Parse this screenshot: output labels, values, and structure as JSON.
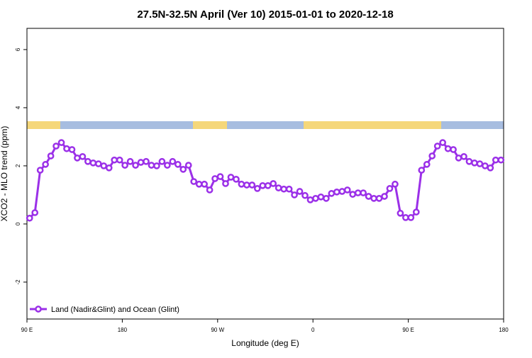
{
  "chart_data": {
    "type": "line",
    "title": "27.5N-32.5N April (Ver 10)   2015-01-01 to 2020-12-18",
    "x_label": "Longitude (deg E)",
    "y_label": "XCO2 - MLO trend (ppm)",
    "xlim": [
      90,
      540
    ],
    "ylim": [
      -3.27,
      6.73
    ],
    "xticks": [
      {
        "value": 90,
        "label": "90 E"
      },
      180,
      {
        "value": 270,
        "label": "90 W"
      },
      {
        "value": 360,
        "label": "0"
      },
      {
        "value": 450,
        "label": "90 E"
      },
      {
        "value": 540,
        "label": "180"
      }
    ],
    "yticks": [
      -2,
      0,
      2,
      4,
      6
    ],
    "legend": "bottom-left",
    "x": [
      92.5,
      97.5,
      102.5,
      107.5,
      112.5,
      117.5,
      122.5,
      127.5,
      132.5,
      137.5,
      142.5,
      147.5,
      152.5,
      157.5,
      162.5,
      167.5,
      172.5,
      177.5,
      182.5,
      187.5,
      192.5,
      197.5,
      202.5,
      207.5,
      212.5,
      217.5,
      222.5,
      227.5,
      232.5,
      237.5,
      242.5,
      247.5,
      252.5,
      257.5,
      262.5,
      267.5,
      272.5,
      277.5,
      282.5,
      287.5,
      292.5,
      297.5,
      302.5,
      307.5,
      312.5,
      317.5,
      322.5,
      327.5,
      332.5,
      337.5,
      342.5,
      347.5,
      352.5,
      357.5,
      362.5,
      367.5,
      372.5,
      377.5,
      382.5,
      387.5,
      392.5,
      397.5,
      402.5,
      407.5,
      412.5,
      417.5,
      422.5,
      427.5,
      432.5,
      437.5,
      442.5,
      447.5,
      452.5,
      457.5,
      462.5,
      467.5,
      472.5,
      477.5,
      482.5,
      487.5,
      492.5,
      497.5,
      502.5,
      507.5,
      512.5,
      517.5,
      522.5,
      527.5,
      532.5,
      537.5
    ],
    "series": [
      {
        "name": "Land (Nadir&Glint) and Ocean (Glint)",
        "color": "#9b30e8",
        "values": [
          0.2,
          0.39,
          1.85,
          2.05,
          2.34,
          2.68,
          2.8,
          2.59,
          2.56,
          2.27,
          2.32,
          2.15,
          2.1,
          2.07,
          2.0,
          1.93,
          2.2,
          2.2,
          2.02,
          2.15,
          2.02,
          2.12,
          2.15,
          2.02,
          2.0,
          2.15,
          2.02,
          2.15,
          2.05,
          1.88,
          2.02,
          1.46,
          1.37,
          1.37,
          1.17,
          1.56,
          1.63,
          1.39,
          1.61,
          1.54,
          1.37,
          1.34,
          1.34,
          1.22,
          1.32,
          1.32,
          1.39,
          1.24,
          1.2,
          1.2,
          1.0,
          1.12,
          0.98,
          0.83,
          0.88,
          0.93,
          0.88,
          1.05,
          1.1,
          1.12,
          1.17,
          1.02,
          1.07,
          1.07,
          0.95,
          0.88,
          0.88,
          0.95,
          1.22,
          1.37,
          0.37,
          0.22,
          0.22,
          0.41,
          1.85,
          2.05,
          2.34,
          2.68,
          2.8,
          2.59,
          2.56,
          2.27,
          2.32,
          2.15,
          2.1,
          2.07,
          2.0,
          1.93,
          2.2,
          2.2
        ]
      }
    ]
  }
}
